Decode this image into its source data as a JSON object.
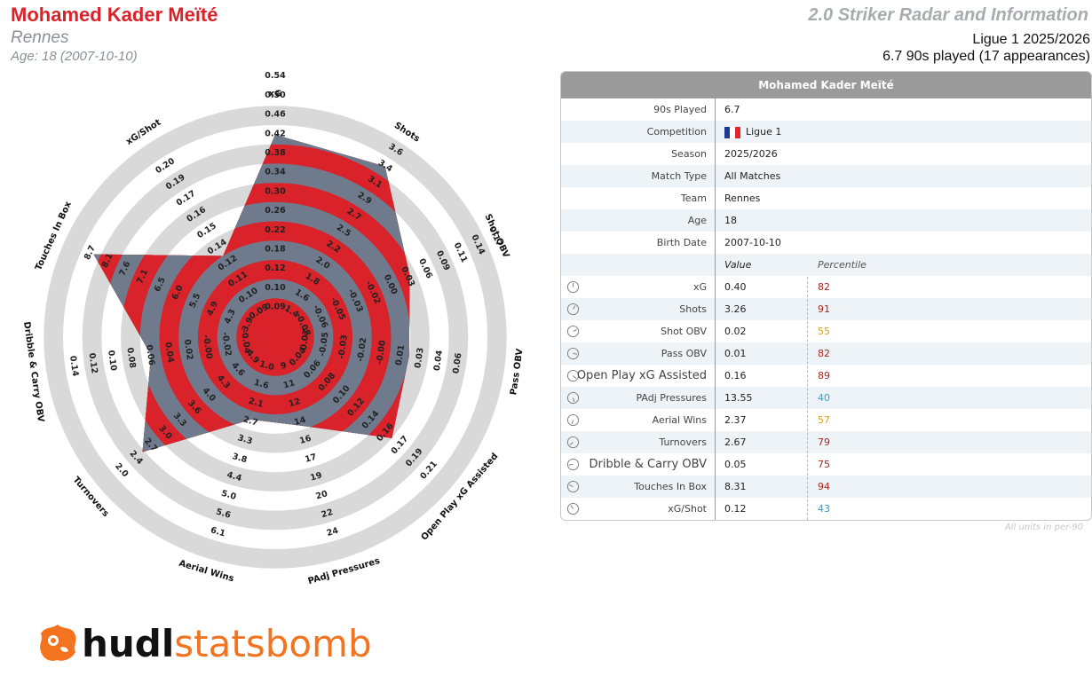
{
  "header": {
    "player_name": "Mohamed Kader Meïté",
    "team": "Rennes",
    "age_line": "Age: 18 (2007-10-10)",
    "report_title": "2.0 Striker Radar and Information",
    "league_season": "Ligue 1 2025/2026",
    "minutes_line": "6.7 90s played (17 appearances)"
  },
  "colors": {
    "player_red": "#d9222a",
    "ring_grey": "#d9d9d9",
    "polygon_slate": "#6f7b8c",
    "logo_orange": "#f3731f"
  },
  "chart_data": {
    "type": "radar",
    "metrics": [
      {
        "name": "xG",
        "ticks": [
          "0.09",
          "0.10",
          "0.12",
          "0.18",
          "0.22",
          "0.26",
          "0.30",
          "0.34",
          "0.38",
          "0.42",
          "0.46",
          "0.50",
          "0.54"
        ],
        "value": 0.4
      },
      {
        "name": "Shots",
        "ticks": [
          "1.4",
          "1.6",
          "1.8",
          "2.0",
          "2.2",
          "2.5",
          "2.7",
          "2.9",
          "3.1",
          "3.4",
          "3.6"
        ],
        "value": 3.26
      },
      {
        "name": "Shot OBV",
        "ticks": [
          "-0.08",
          "-0.06",
          "-0.05",
          "-0.03",
          "-0.02",
          "0.00",
          "0.03",
          "0.06",
          "0.09",
          "0.11",
          "0.14",
          "0.17"
        ],
        "value": 0.02
      },
      {
        "name": "Pass OBV",
        "ticks": [
          "-0.07",
          "-0.05",
          "-0.03",
          "-0.02",
          "-0.00",
          "0.01",
          "0.03",
          "0.04",
          "0.06"
        ],
        "value": 0.01
      },
      {
        "name": "Open Play xG Assisted",
        "ticks": [
          "0.04",
          "0.06",
          "0.08",
          "0.10",
          "0.12",
          "0.14",
          "0.16",
          "0.17",
          "0.19",
          "0.21"
        ],
        "value": 0.16
      },
      {
        "name": "PAdj Pressures",
        "ticks": [
          "9",
          "11",
          "12",
          "14",
          "16",
          "17",
          "19",
          "20",
          "22",
          "24"
        ],
        "value": 13.55
      },
      {
        "name": "Aerial Wins",
        "ticks": [
          "1.0",
          "1.6",
          "2.1",
          "2.7",
          "3.3",
          "3.8",
          "4.4",
          "5.0",
          "5.6",
          "6.1"
        ],
        "value": 2.37
      },
      {
        "name": "Turnovers",
        "ticks": [
          "4.9",
          "4.6",
          "4.3",
          "4.0",
          "3.6",
          "3.3",
          "3.0",
          "2.7",
          "2.4",
          "2.0"
        ],
        "value": 2.67
      },
      {
        "name": "Dribble & Carry OBV",
        "ticks": [
          "-0.04",
          "-0.02",
          "-0.00",
          "0.02",
          "0.04",
          "0.06",
          "0.08",
          "0.10",
          "0.12",
          "0.14"
        ],
        "value": 0.05
      },
      {
        "name": "Touches In Box",
        "ticks": [
          "3.9",
          "4.3",
          "4.9",
          "5.5",
          "6.0",
          "6.5",
          "7.1",
          "7.6",
          "8.1",
          "8.7"
        ],
        "value": 8.31
      },
      {
        "name": "xG/Shot",
        "ticks": [
          "0.09",
          "0.10",
          "0.11",
          "0.12",
          "0.14",
          "0.15",
          "0.16",
          "0.17",
          "0.19",
          "0.20"
        ],
        "value": 0.12
      }
    ]
  },
  "table": {
    "title": "Mohamed Kader Meïté",
    "info_rows": [
      {
        "label": "90s Played",
        "value": "6.7"
      },
      {
        "label": "Competition",
        "value": "Ligue 1",
        "flag": true
      },
      {
        "label": "Season",
        "value": "2025/2026"
      },
      {
        "label": "Match Type",
        "value": "All Matches"
      },
      {
        "label": "Team",
        "value": "Rennes"
      },
      {
        "label": "Age",
        "value": "18"
      },
      {
        "label": "Birth Date",
        "value": "2007-10-10"
      }
    ],
    "value_header": "Value",
    "percentile_header": "Percentile",
    "metric_rows": [
      {
        "label": "xG",
        "value": "0.40",
        "percentile": "82",
        "color": "#a5271f",
        "icon": "gauge-icon"
      },
      {
        "label": "Shots",
        "value": "3.26",
        "percentile": "91",
        "color": "#a5271f",
        "icon": "gauge-icon"
      },
      {
        "label": "Shot OBV",
        "value": "0.02",
        "percentile": "55",
        "color": "#d6a21e",
        "icon": "gauge-icon"
      },
      {
        "label": "Pass OBV",
        "value": "0.01",
        "percentile": "82",
        "color": "#a5271f",
        "icon": "gauge-icon"
      },
      {
        "label": "Open Play xG Assisted",
        "value": "0.16",
        "percentile": "89",
        "color": "#a5271f",
        "icon": "gauge-icon"
      },
      {
        "label": "PAdj Pressures",
        "value": "13.55",
        "percentile": "40",
        "color": "#2aa3c9",
        "icon": "gauge-icon"
      },
      {
        "label": "Aerial Wins",
        "value": "2.37",
        "percentile": "57",
        "color": "#d6a21e",
        "icon": "gauge-icon"
      },
      {
        "label": "Turnovers",
        "value": "2.67",
        "percentile": "79",
        "color": "#a5271f",
        "icon": "gauge-icon"
      },
      {
        "label": "Dribble & Carry OBV",
        "value": "0.05",
        "percentile": "75",
        "color": "#a5271f",
        "icon": "gauge-icon"
      },
      {
        "label": "Touches In Box",
        "value": "8.31",
        "percentile": "94",
        "color": "#a5271f",
        "icon": "gauge-icon"
      },
      {
        "label": "xG/Shot",
        "value": "0.12",
        "percentile": "43",
        "color": "#2aa3c9",
        "icon": "gauge-icon"
      }
    ],
    "units_note": "All units in per-90"
  },
  "logo": {
    "word1": "hudl",
    "word2": "statsbomb"
  }
}
